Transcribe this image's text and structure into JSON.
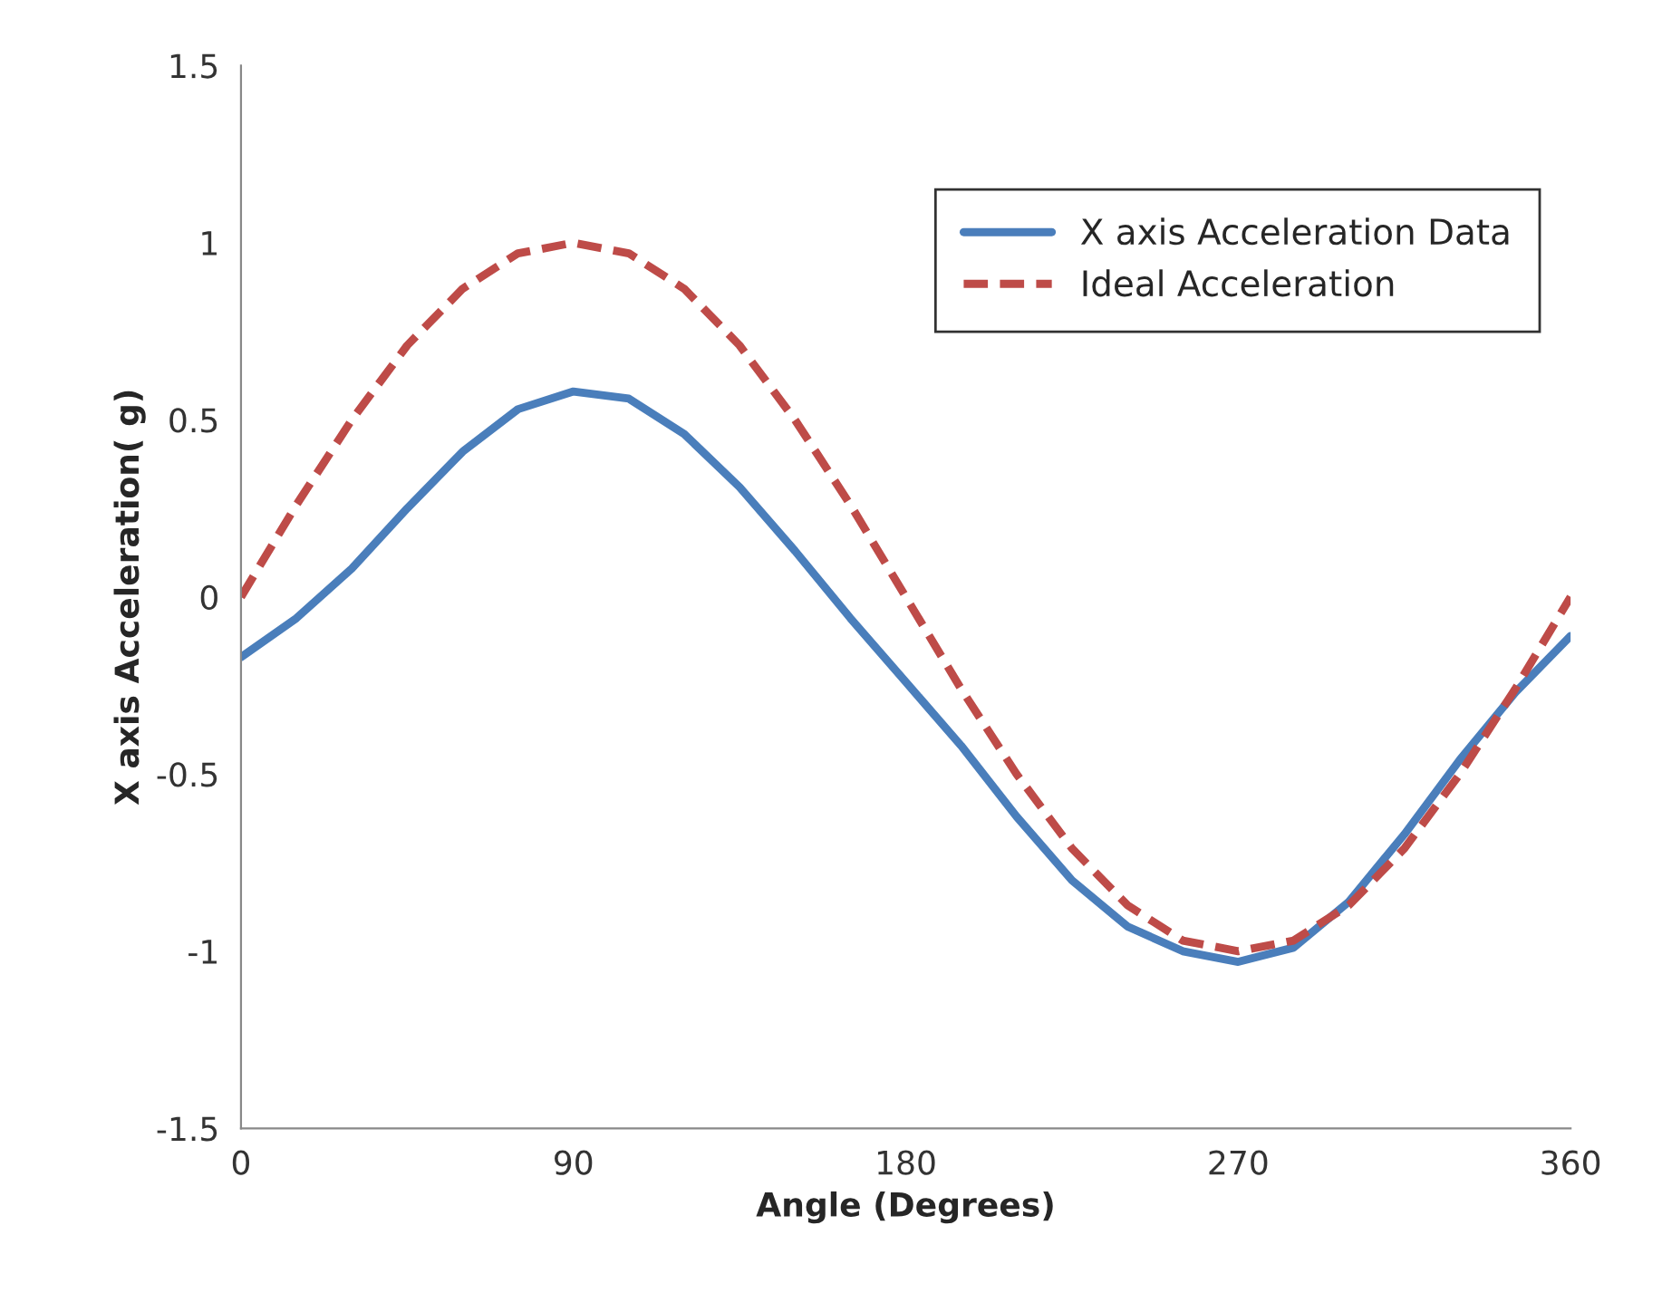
{
  "chart_data": {
    "type": "line",
    "xlabel": "Angle (Degrees)",
    "ylabel": "X axis Acceleration( g)",
    "xlim": [
      0,
      360
    ],
    "xticks": [
      0,
      90,
      180,
      270,
      360
    ],
    "ylim": [
      -1.5,
      1.5
    ],
    "yticks": [
      -1.5,
      -1,
      -0.5,
      0,
      0.5,
      1,
      1.5
    ],
    "grid": false,
    "legend": "top right",
    "marker": "none",
    "series": [
      {
        "name": "X axis Acceleration Data",
        "color": "#4a7ebb",
        "line_style": "solid",
        "x": [
          0,
          15,
          30,
          45,
          60,
          75,
          90,
          105,
          120,
          135,
          150,
          165,
          180,
          195,
          210,
          225,
          240,
          255,
          270,
          285,
          300,
          315,
          330,
          345,
          360
        ],
        "values": [
          -0.17,
          -0.06,
          0.08,
          0.25,
          0.41,
          0.53,
          0.58,
          0.56,
          0.46,
          0.31,
          0.13,
          -0.06,
          -0.24,
          -0.42,
          -0.62,
          -0.8,
          -0.93,
          -1.0,
          -1.03,
          -0.99,
          -0.86,
          -0.67,
          -0.46,
          -0.27,
          -0.11
        ]
      },
      {
        "name": "Ideal Acceleration",
        "color": "#be4b48",
        "line_style": "dashed",
        "x": [
          0,
          15,
          30,
          45,
          60,
          75,
          90,
          105,
          120,
          135,
          150,
          165,
          180,
          195,
          210,
          225,
          240,
          255,
          270,
          285,
          300,
          315,
          330,
          345,
          360
        ],
        "values": [
          0,
          0.26,
          0.5,
          0.71,
          0.87,
          0.97,
          1,
          0.97,
          0.87,
          0.71,
          0.5,
          0.26,
          0,
          -0.26,
          -0.5,
          -0.71,
          -0.87,
          -0.97,
          -1,
          -0.97,
          -0.87,
          -0.71,
          -0.5,
          -0.26,
          0
        ]
      }
    ]
  }
}
